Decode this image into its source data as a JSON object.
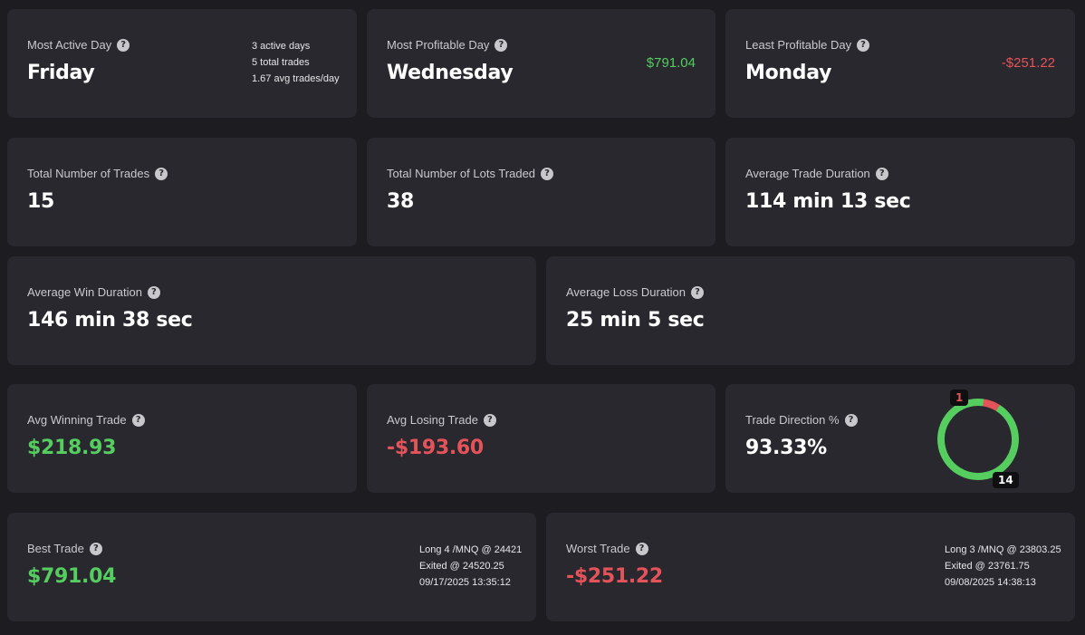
{
  "most_active_day": {
    "label": "Most Active Day",
    "value": "Friday",
    "details": [
      "3 active days",
      "5 total trades",
      "1.67 avg trades/day"
    ]
  },
  "most_profitable_day": {
    "label": "Most Profitable Day",
    "value": "Wednesday",
    "amount": "$791.04"
  },
  "least_profitable_day": {
    "label": "Least Profitable Day",
    "value": "Monday",
    "amount": "-$251.22"
  },
  "total_trades": {
    "label": "Total Number of Trades",
    "value": "15"
  },
  "total_lots": {
    "label": "Total Number of Lots Traded",
    "value": "38"
  },
  "avg_trade_duration": {
    "label": "Average Trade Duration",
    "value": "114 min 13 sec"
  },
  "avg_win_duration": {
    "label": "Average Win Duration",
    "value": "146 min 38 sec"
  },
  "avg_loss_duration": {
    "label": "Average Loss Duration",
    "value": "25 min 5 sec"
  },
  "avg_winning_trade": {
    "label": "Avg Winning Trade",
    "value": "$218.93"
  },
  "avg_losing_trade": {
    "label": "Avg Losing Trade",
    "value": "-$193.60"
  },
  "trade_direction": {
    "label": "Trade Direction %",
    "value": "93.33%",
    "long_count": "14",
    "short_count": "1",
    "long_color": "#55cd5f",
    "short_color": "#e5535a"
  },
  "best_trade": {
    "label": "Best Trade",
    "value": "$791.04",
    "details": [
      "Long 4 /MNQ @ 24421",
      "Exited @ 24520.25",
      "09/17/2025 13:35:12"
    ]
  },
  "worst_trade": {
    "label": "Worst Trade",
    "value": "-$251.22",
    "details": [
      "Long 3 /MNQ @ 23803.25",
      "Exited @ 23761.75",
      "09/08/2025 14:38:13"
    ]
  },
  "help_glyph": "?"
}
